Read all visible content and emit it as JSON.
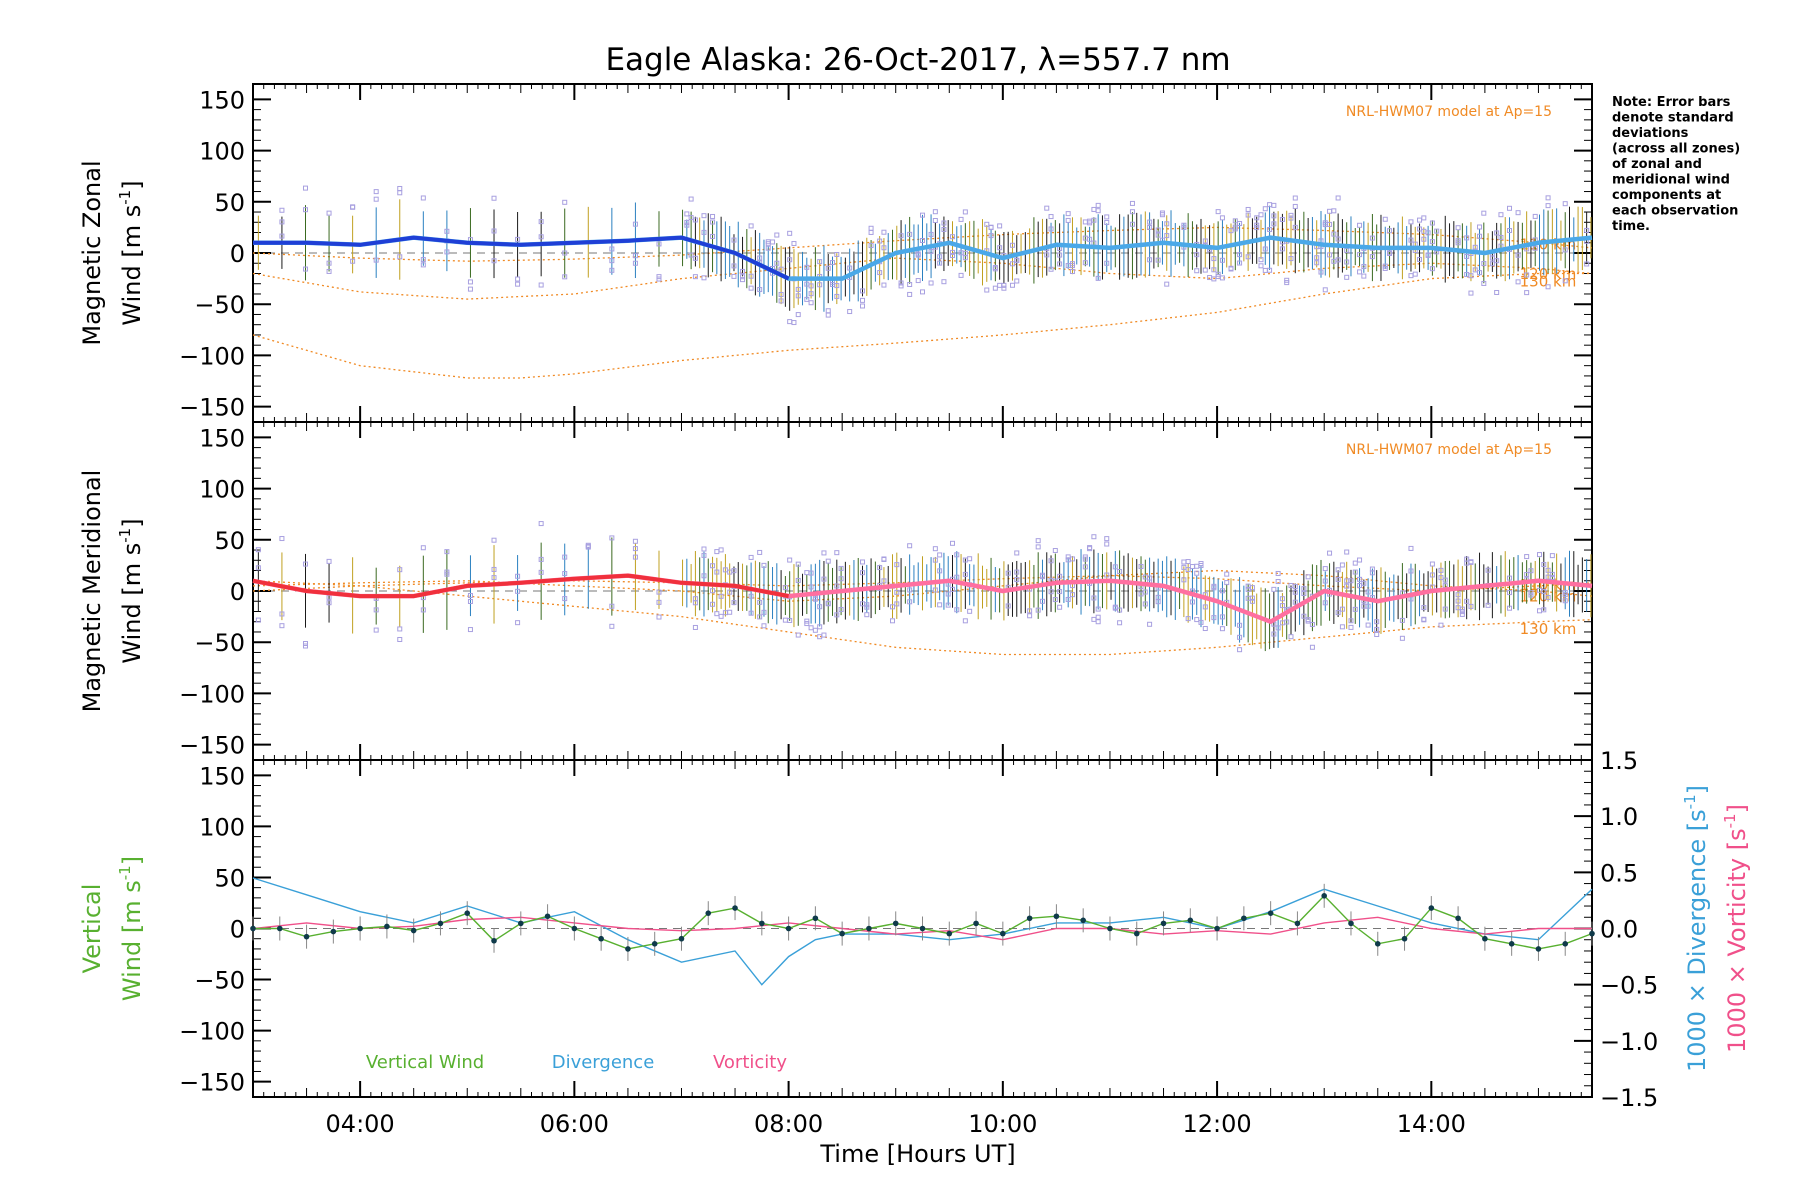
{
  "chart_data": {
    "type": "line",
    "title": "Eagle Alaska: 26-Oct-2017, λ=557.7 nm",
    "xlabel": "Time [Hours UT]",
    "x_range_hours": [
      3.0,
      15.5
    ],
    "x_ticks": [
      {
        "hour": 4,
        "label": "04:00"
      },
      {
        "hour": 6,
        "label": "06:00"
      },
      {
        "hour": 8,
        "label": "08:00"
      },
      {
        "hour": 10,
        "label": "10:00"
      },
      {
        "hour": 12,
        "label": "12:00"
      },
      {
        "hour": 14,
        "label": "14:00"
      }
    ],
    "ylim": [
      -165,
      165
    ],
    "y_ticks": [
      "150",
      "100",
      "50",
      "0",
      "−50",
      "−100",
      "−150"
    ],
    "y_tick_values": [
      150,
      100,
      50,
      0,
      -50,
      -100,
      -150
    ],
    "note": [
      "Note: Error bars",
      "denote standard",
      "deviations",
      "(across all zones)",
      "of zonal and",
      "meridional wind",
      "components at",
      "each observation",
      "time."
    ],
    "colors": {
      "zonal": "#1f3fd6",
      "zonal_light": "#4aa8e8",
      "meridional": "#f0303c",
      "meridional_light": "#ff6fa0",
      "model": "#f08a24",
      "zone_points": "#a8a0e0",
      "vertical": "#58b030",
      "divergence": "#3aa0d8",
      "vorticity": "#f0508a",
      "vertical_dots": "#0f3a4a"
    },
    "panels": [
      {
        "name": "zonal",
        "ylabel_line1": "Magnetic Zonal",
        "ylabel_line2": "Wind [m s",
        "ylabel_sup": "-1",
        "ylabel_end": "]",
        "model_label": "NRL-HWM07 model at Ap=15",
        "model_curves": [
          {
            "label": "110 km",
            "x": [
              3.0,
              4.0,
              5.0,
              6.0,
              7.0,
              8.0,
              9.0,
              10.0,
              11.0,
              12.0,
              13.0,
              14.0,
              15.0,
              15.5
            ],
            "y": [
              0,
              -5,
              -8,
              -6,
              -2,
              5,
              12,
              18,
              22,
              25,
              22,
              18,
              10,
              5
            ]
          },
          {
            "label": "120 km",
            "x": [
              3.0,
              4.0,
              5.0,
              6.0,
              7.0,
              8.0,
              9.0,
              10.0,
              11.0,
              12.0,
              13.0,
              14.0,
              15.0,
              15.5
            ],
            "y": [
              -20,
              -38,
              -45,
              -40,
              -25,
              -15,
              -5,
              -10,
              -20,
              -25,
              -15,
              -10,
              -15,
              -20
            ]
          },
          {
            "label": "130 km",
            "x": [
              3.0,
              4.0,
              5.0,
              5.5,
              6.0,
              7.0,
              8.0,
              9.0,
              10.0,
              11.0,
              12.0,
              13.0,
              14.0,
              15.0,
              15.5
            ],
            "y": [
              -80,
              -110,
              -122,
              -122,
              -118,
              -105,
              -95,
              -88,
              -80,
              -70,
              -58,
              -40,
              -25,
              -20,
              -20
            ]
          }
        ],
        "series": {
          "x": [
            3.0,
            3.5,
            4.0,
            4.5,
            5.0,
            5.5,
            6.0,
            6.5,
            7.0,
            7.5,
            8.0,
            8.5,
            9.0,
            9.5,
            10.0,
            10.5,
            11.0,
            11.5,
            12.0,
            12.5,
            13.0,
            13.5,
            14.0,
            14.5,
            15.0,
            15.5
          ],
          "y": [
            10,
            10,
            8,
            15,
            10,
            8,
            10,
            12,
            15,
            0,
            -25,
            -25,
            0,
            10,
            -5,
            8,
            5,
            10,
            5,
            15,
            8,
            5,
            5,
            0,
            10,
            15
          ]
        }
      },
      {
        "name": "meridional",
        "ylabel_line1": "Magnetic Meridional",
        "ylabel_line2": "Wind [m s",
        "ylabel_sup": "-1",
        "ylabel_end": "]",
        "model_label": "NRL-HWM07 model at Ap=15",
        "model_curves": [
          {
            "label": "110 km",
            "x": [
              3.0,
              4.0,
              5.0,
              6.0,
              7.0,
              8.0,
              9.0,
              10.0,
              11.0,
              12.0,
              13.0,
              14.0,
              15.0,
              15.5
            ],
            "y": [
              0,
              5,
              8,
              10,
              8,
              5,
              8,
              12,
              15,
              12,
              5,
              0,
              5,
              8
            ]
          },
          {
            "label": "120 km",
            "x": [
              3.0,
              4.0,
              5.0,
              6.0,
              7.0,
              8.0,
              9.0,
              10.0,
              11.0,
              12.0,
              13.0,
              14.0,
              15.0,
              15.5
            ],
            "y": [
              5,
              8,
              10,
              5,
              0,
              -10,
              -5,
              5,
              15,
              20,
              15,
              5,
              0,
              -5
            ]
          },
          {
            "label": "130 km",
            "x": [
              3.0,
              4.0,
              5.0,
              6.0,
              7.0,
              8.0,
              9.0,
              10.0,
              11.0,
              12.0,
              13.0,
              14.0,
              15.0,
              15.5
            ],
            "y": [
              10,
              5,
              -5,
              -15,
              -25,
              -40,
              -55,
              -62,
              -62,
              -55,
              -45,
              -35,
              -30,
              -28
            ]
          }
        ],
        "series": {
          "x": [
            3.0,
            3.5,
            4.0,
            4.5,
            5.0,
            5.5,
            6.0,
            6.5,
            7.0,
            7.5,
            8.0,
            8.5,
            9.0,
            9.5,
            10.0,
            10.5,
            11.0,
            11.5,
            12.0,
            12.5,
            13.0,
            13.5,
            14.0,
            14.5,
            15.0,
            15.5
          ],
          "y": [
            10,
            0,
            -5,
            -5,
            5,
            8,
            12,
            15,
            8,
            5,
            -5,
            0,
            5,
            10,
            0,
            8,
            10,
            5,
            -10,
            -30,
            0,
            -10,
            0,
            5,
            10,
            5
          ]
        }
      },
      {
        "name": "vertical",
        "ylabel_line1": "Vertical",
        "ylabel_line2": "Wind [m s",
        "ylabel_sup": "-1",
        "ylabel_end": "]",
        "right_ylim": [
          -1.5,
          1.5
        ],
        "right_ticks": [
          "1.5",
          "1.0",
          "0.5",
          "0.0",
          "−0.5",
          "−1.0",
          "−1.5"
        ],
        "right_tick_values": [
          1.5,
          1.0,
          0.5,
          0.0,
          -0.5,
          -1.0,
          -1.5
        ],
        "right_label_div": "1000 × Divergence [s",
        "right_label_vor": "1000 × Vorticity [s",
        "right_label_sup": "-1",
        "right_label_end": "]",
        "legend": [
          "Vertical Wind",
          "Divergence",
          "Vorticity"
        ],
        "vertical_wind": {
          "x": [
            3.0,
            3.25,
            3.5,
            3.75,
            4.0,
            4.25,
            4.5,
            4.75,
            5.0,
            5.25,
            5.5,
            5.75,
            6.0,
            6.25,
            6.5,
            6.75,
            7.0,
            7.25,
            7.5,
            7.75,
            8.0,
            8.25,
            8.5,
            8.75,
            9.0,
            9.25,
            9.5,
            9.75,
            10.0,
            10.25,
            10.5,
            10.75,
            11.0,
            11.25,
            11.5,
            11.75,
            12.0,
            12.25,
            12.5,
            12.75,
            13.0,
            13.25,
            13.5,
            13.75,
            14.0,
            14.25,
            14.5,
            14.75,
            15.0,
            15.25,
            15.5
          ],
          "y": [
            0,
            0,
            -8,
            -3,
            0,
            2,
            -2,
            5,
            15,
            -12,
            5,
            12,
            0,
            -10,
            -20,
            -15,
            -10,
            15,
            20,
            5,
            0,
            10,
            -5,
            0,
            5,
            0,
            -5,
            5,
            -5,
            10,
            12,
            8,
            0,
            -5,
            5,
            8,
            0,
            10,
            15,
            5,
            32,
            5,
            -15,
            -10,
            20,
            10,
            -10,
            -15,
            -20,
            -15,
            -5
          ]
        },
        "divergence": {
          "x": [
            3.0,
            3.5,
            4.0,
            4.5,
            5.0,
            5.5,
            6.0,
            6.5,
            7.0,
            7.5,
            7.75,
            8.0,
            8.25,
            8.5,
            9.0,
            9.5,
            10.0,
            10.5,
            11.0,
            11.5,
            12.0,
            12.5,
            13.0,
            13.5,
            14.0,
            14.5,
            15.0,
            15.5
          ],
          "y": [
            0.45,
            0.3,
            0.15,
            0.05,
            0.2,
            0.05,
            0.15,
            -0.1,
            -0.3,
            -0.2,
            -0.5,
            -0.25,
            -0.1,
            -0.05,
            -0.05,
            -0.1,
            -0.05,
            0.05,
            0.05,
            0.1,
            0.0,
            0.15,
            0.35,
            0.2,
            0.05,
            -0.05,
            -0.1,
            0.35
          ]
        },
        "vorticity": {
          "x": [
            3.0,
            3.5,
            4.0,
            4.5,
            5.0,
            5.5,
            6.0,
            6.5,
            7.0,
            7.5,
            8.0,
            8.5,
            9.0,
            9.5,
            10.0,
            10.5,
            11.0,
            11.5,
            12.0,
            12.5,
            13.0,
            13.5,
            14.0,
            14.5,
            15.0,
            15.5
          ],
          "y": [
            0.0,
            0.05,
            0.0,
            0.02,
            0.08,
            0.1,
            0.05,
            0.0,
            -0.02,
            0.0,
            0.05,
            0.0,
            -0.05,
            -0.02,
            -0.1,
            0.0,
            0.0,
            -0.05,
            -0.02,
            -0.05,
            0.05,
            0.1,
            0.0,
            -0.05,
            0.0,
            0.0
          ]
        }
      }
    ]
  }
}
